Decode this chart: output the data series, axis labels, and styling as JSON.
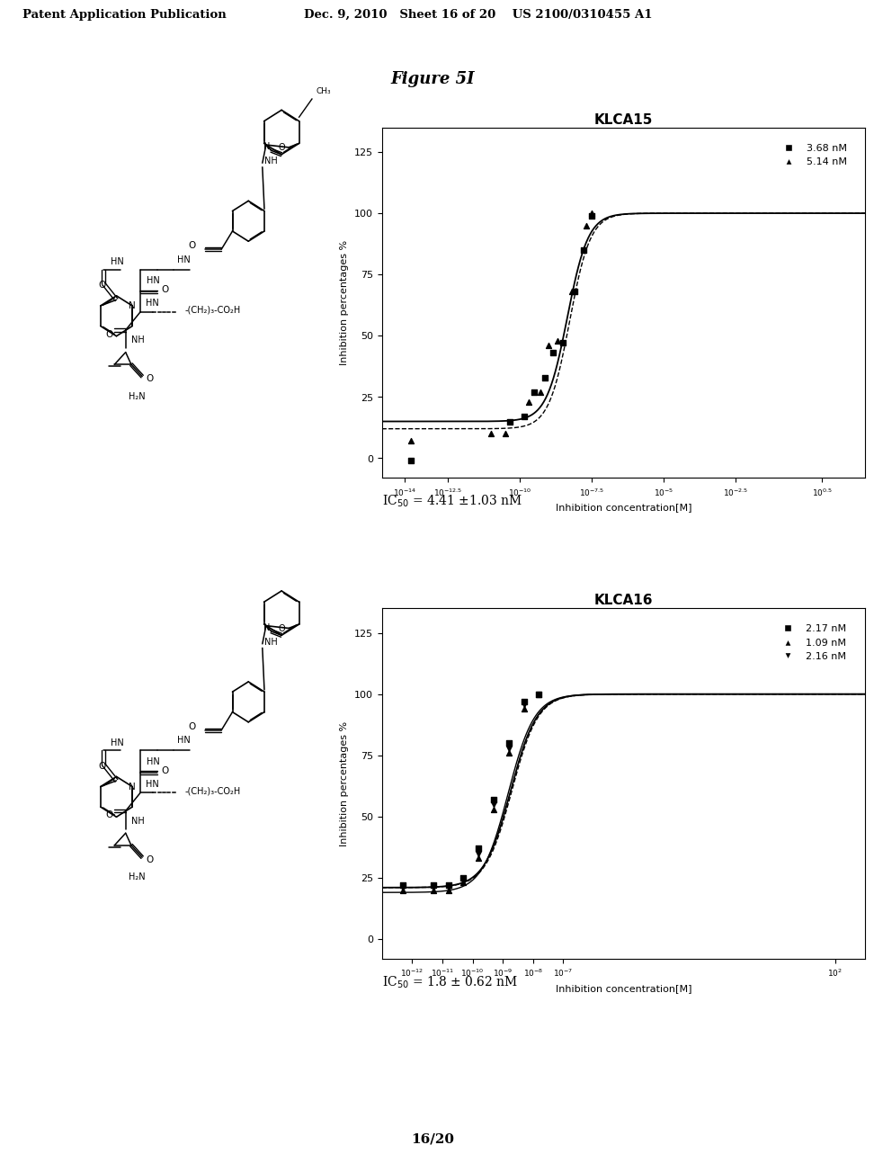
{
  "page_header_left": "Patent Application Publication",
  "page_header_right": "Dec. 9, 2010   Sheet 16 of 20    US 2100/0310455 A1",
  "figure_title": "Figure 5I",
  "page_footer": "16/20",
  "plot1": {
    "title": "KLCA15",
    "xlabel": "Inhibition concentration[M]",
    "ylabel": "Inhibition percentages %",
    "ylim": [
      -8,
      135
    ],
    "yticks": [
      0,
      25,
      50,
      75,
      100,
      125
    ],
    "xtick_exponents": [
      -14.0,
      -12.5,
      -10.0,
      -7.5,
      -5.0,
      -2.5,
      0.5
    ],
    "xlim": [
      -14.8,
      2.0
    ],
    "ic50_text": "IC50 = 4.41 ±1.03 nM",
    "series1_label": "3.68 nM",
    "series2_label": "5.14 nM",
    "ic50_log": -8.355,
    "s1_scatter_x": [
      -13.8,
      -10.35,
      -9.85,
      -9.5,
      -9.15,
      -8.85,
      -8.5,
      -8.1,
      -7.8,
      -7.5
    ],
    "s1_scatter_y": [
      -1,
      15,
      17,
      27,
      33,
      43,
      47,
      68,
      85,
      99
    ],
    "s2_scatter_x": [
      -13.8,
      -11.0,
      -10.5,
      -9.7,
      -9.3,
      -9.0,
      -8.7,
      -8.2,
      -7.7,
      -7.5
    ],
    "s2_scatter_y": [
      7,
      10,
      10,
      23,
      27,
      46,
      48,
      68,
      95,
      100
    ]
  },
  "plot2": {
    "title": "KLCA16",
    "xlabel": "Inhibition concentration[M]",
    "ylabel": "Inhibition percentages %",
    "ylim": [
      -8,
      135
    ],
    "yticks": [
      0,
      25,
      50,
      75,
      100,
      125
    ],
    "xtick_exponents": [
      -12,
      -11,
      -10,
      -9,
      -8,
      -7,
      2
    ],
    "xlim": [
      -13,
      3
    ],
    "ic50_text": "IC50 = 1.8 ± 0.62 nM",
    "series1_label": "2.17 nM",
    "series2_label": "1.09 nM",
    "series3_label": "2.16 nM",
    "ic50_log": -8.74,
    "s1_scatter_x": [
      -12.3,
      -11.3,
      -10.8,
      -10.3,
      -9.8,
      -9.3,
      -8.8,
      -8.3,
      -7.8
    ],
    "s1_scatter_y": [
      22,
      22,
      22,
      25,
      37,
      57,
      80,
      97,
      100
    ],
    "s2_scatter_x": [
      -12.3,
      -11.3,
      -10.8,
      -10.3,
      -9.8,
      -9.3,
      -8.8,
      -8.3,
      -7.8
    ],
    "s2_scatter_y": [
      20,
      20,
      20,
      23,
      33,
      53,
      76,
      94,
      100
    ],
    "s3_scatter_x": [
      -12.3,
      -11.3,
      -10.8,
      -10.3,
      -9.8,
      -9.3,
      -8.8,
      -8.3,
      -7.8
    ],
    "s3_scatter_y": [
      21,
      21,
      21,
      24,
      35,
      55,
      78,
      96,
      100
    ]
  },
  "background_color": "#ffffff",
  "text_color": "#000000"
}
